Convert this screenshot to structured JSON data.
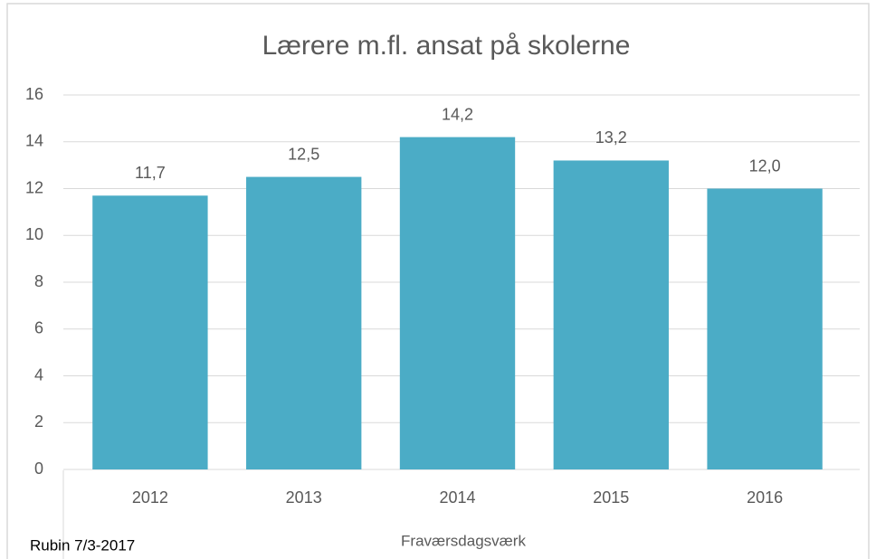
{
  "chart_data": {
    "type": "bar",
    "title": "Lærere m.fl. ansat på skolerne",
    "categories": [
      "2012",
      "2013",
      "2014",
      "2015",
      "2016"
    ],
    "values": [
      11.7,
      12.5,
      14.2,
      13.2,
      12.0
    ],
    "value_labels": [
      "11,7",
      "12,5",
      "14,2",
      "13,2",
      "12,0"
    ],
    "color": "#4bacc6",
    "ylim": [
      0,
      16
    ],
    "yticks": [
      0,
      2,
      4,
      6,
      8,
      10,
      12,
      14,
      16
    ],
    "grid": true,
    "x_label": "Fraværsdagsværk",
    "annotation": "Rubin 7/3-2017"
  }
}
